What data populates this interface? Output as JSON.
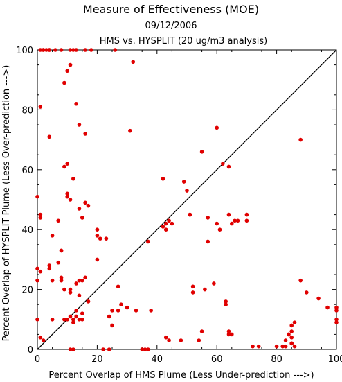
{
  "chart_data": {
    "type": "scatter",
    "title": "Measure of Effectiveness (MOE)",
    "subtitle_date": "09/12/2006",
    "subtitle_analysis": "HMS vs. HYSPLIT  (20 ug/m3 analysis)",
    "xlabel": "Percent Overlap of HMS Plume (Less Under-prediction --->)",
    "ylabel": "Percent Overlap of HYSPLIT Plume (Less Over-prediction --->)",
    "xlim": [
      0,
      100
    ],
    "ylim": [
      0,
      100
    ],
    "x_ticks": [
      "0",
      "20",
      "40",
      "60",
      "80",
      "100"
    ],
    "y_ticks": [
      "0",
      "20",
      "40",
      "60",
      "80",
      "100"
    ],
    "grid": false,
    "reference_line": "y = x",
    "marker_color": "#e00000",
    "x": [
      1,
      2,
      3,
      4,
      4,
      6,
      8,
      9,
      10,
      11,
      12,
      13,
      18,
      32,
      16,
      11,
      2,
      26,
      13,
      1,
      14,
      16,
      31,
      4,
      9,
      10,
      12,
      16,
      14,
      10,
      11,
      0,
      10,
      1,
      1,
      15,
      15,
      7,
      17,
      8,
      8,
      5,
      8,
      8,
      9,
      11,
      14,
      11,
      14,
      15,
      16,
      13,
      0,
      5,
      7,
      4,
      4,
      0,
      1,
      5,
      10,
      11,
      12,
      12,
      13,
      14,
      15,
      15,
      17,
      17,
      0,
      1,
      2,
      13,
      9,
      11,
      12,
      22,
      25,
      25,
      24,
      27,
      27,
      28,
      30,
      33,
      38,
      36,
      37,
      35,
      24,
      23,
      20,
      21,
      20,
      20,
      37,
      43,
      43,
      44,
      45,
      42,
      42,
      49,
      50,
      51,
      51,
      57,
      60,
      61,
      65,
      66,
      64,
      67,
      70,
      70,
      55,
      57,
      60,
      62,
      64,
      59,
      52,
      52,
      56,
      63,
      63,
      64,
      65,
      64,
      55,
      54,
      48,
      43,
      44,
      83,
      85,
      86,
      88,
      88,
      90,
      94,
      97,
      100,
      100,
      100,
      100,
      86,
      85,
      85,
      84,
      84,
      85,
      85,
      83,
      82,
      80,
      72,
      74
    ],
    "y": [
      100,
      100,
      100,
      100,
      100,
      100,
      100,
      89,
      93,
      100,
      100,
      100,
      100,
      96,
      100,
      95,
      100,
      100,
      82,
      81,
      75,
      72,
      73,
      71,
      61,
      62,
      57,
      49,
      47,
      52,
      50,
      51,
      51,
      44,
      45,
      44,
      44,
      43,
      48,
      33,
      24,
      38,
      33,
      23,
      20,
      20,
      18,
      19,
      23,
      23,
      24,
      22,
      23,
      23,
      29,
      28,
      27,
      27,
      26,
      10,
      10,
      11,
      10,
      9,
      13,
      10,
      12,
      10,
      16,
      16,
      10,
      4,
      3,
      11,
      10,
      0,
      0,
      0,
      8,
      13,
      11,
      13,
      21,
      15,
      14,
      13,
      13,
      0,
      0,
      0,
      0,
      37,
      38,
      37,
      30,
      40,
      36,
      40,
      42,
      43,
      42,
      41,
      57,
      56,
      53,
      45,
      45,
      44,
      42,
      40,
      42,
      43,
      45,
      43,
      43,
      45,
      66,
      36,
      74,
      62,
      61,
      22,
      21,
      19,
      20,
      16,
      15,
      6,
      5,
      5,
      6,
      3,
      3,
      4,
      3,
      1,
      2,
      1,
      70,
      23,
      19,
      17,
      14,
      14,
      13,
      10,
      9,
      9,
      8,
      6,
      5,
      5,
      4,
      2,
      3,
      1,
      1,
      1,
      1
    ],
    "marker": "circle"
  }
}
